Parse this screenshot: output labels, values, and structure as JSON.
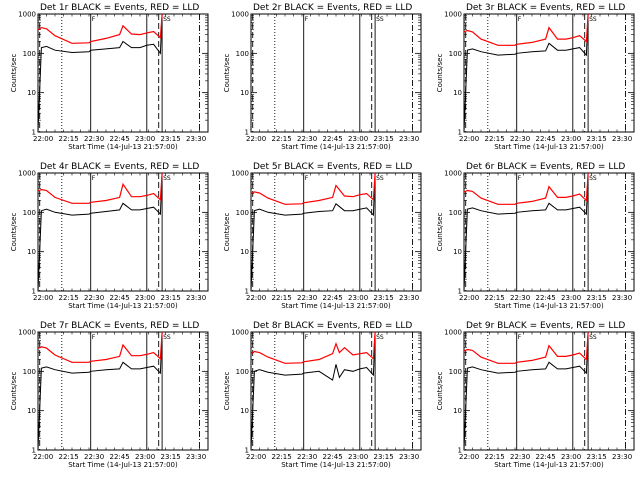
{
  "chart_data": {
    "type": "line",
    "layout": "3x3 grid of panels",
    "shared": {
      "xlabel": "Start Time (14-Jul-13 21:57:00)",
      "ylabel": "Counts/sec",
      "x_tick_labels": [
        "22:00",
        "22:15",
        "22:30",
        "22:45",
        "23:00",
        "23:15",
        "23:30"
      ],
      "x_tick_minutes": [
        3,
        18,
        33,
        48,
        63,
        78,
        93
      ],
      "xlim_minutes": [
        0,
        100
      ],
      "y_scale": "log",
      "ylim": [
        1,
        1000
      ],
      "y_tick_labels": [
        "1",
        "10",
        "100",
        "1000"
      ],
      "y_tick_values": [
        1,
        10,
        100,
        1000
      ],
      "grid": false,
      "series_colors": {
        "events": "#000000",
        "lld": "#ff0000"
      },
      "vertical_markers": [
        {
          "x": 1,
          "style": "dashed"
        },
        {
          "x": 14,
          "style": "dotted"
        },
        {
          "x": 31,
          "style": "solid",
          "label": "F"
        },
        {
          "x": 64,
          "style": "solid"
        },
        {
          "x": 71,
          "style": "dashed"
        },
        {
          "x": 73,
          "style": "solid",
          "label": "SS"
        },
        {
          "x": 95,
          "style": "dash-dot"
        }
      ]
    },
    "panels": [
      {
        "title": "Det 1r BLACK = Events, RED = LLD",
        "has_data": true,
        "x": [
          0,
          2,
          5,
          10,
          20,
          30,
          31,
          40,
          48,
          50,
          55,
          60,
          64,
          68,
          72,
          73
        ],
        "events": [
          1,
          140,
          150,
          120,
          105,
          110,
          120,
          130,
          140,
          200,
          140,
          140,
          160,
          170,
          100,
          1000
        ],
        "lld": [
          400,
          450,
          420,
          280,
          180,
          185,
          200,
          240,
          300,
          500,
          310,
          300,
          330,
          360,
          250,
          1000
        ]
      },
      {
        "title": "Det 2r BLACK = Events, RED = LLD",
        "has_data": false,
        "x": [],
        "events": [],
        "lld": []
      },
      {
        "title": "Det 3r BLACK = Events, RED = LLD",
        "has_data": true,
        "x": [
          0,
          2,
          5,
          10,
          20,
          30,
          31,
          40,
          48,
          50,
          55,
          60,
          64,
          68,
          72,
          73
        ],
        "events": [
          1,
          120,
          130,
          110,
          90,
          95,
          100,
          110,
          115,
          180,
          120,
          120,
          130,
          140,
          90,
          1000
        ],
        "lld": [
          350,
          380,
          350,
          230,
          160,
          160,
          170,
          190,
          230,
          450,
          230,
          230,
          250,
          280,
          200,
          1000
        ]
      },
      {
        "title": "Det 4r BLACK = Events, RED = LLD",
        "has_data": true,
        "x": [
          0,
          2,
          5,
          10,
          20,
          30,
          31,
          40,
          48,
          50,
          55,
          60,
          64,
          68,
          72,
          73
        ],
        "events": [
          1,
          110,
          120,
          100,
          85,
          90,
          95,
          105,
          115,
          170,
          115,
          115,
          125,
          135,
          90,
          1000
        ],
        "lld": [
          350,
          380,
          360,
          240,
          170,
          170,
          180,
          200,
          240,
          520,
          250,
          250,
          270,
          300,
          210,
          1000
        ]
      },
      {
        "title": "Det 5r BLACK = Events, RED = LLD",
        "has_data": true,
        "x": [
          0,
          2,
          5,
          10,
          20,
          30,
          31,
          40,
          48,
          50,
          55,
          60,
          64,
          68,
          72,
          73
        ],
        "events": [
          1,
          110,
          120,
          100,
          85,
          90,
          95,
          105,
          110,
          165,
          110,
          110,
          120,
          130,
          85,
          1000
        ],
        "lld": [
          300,
          330,
          310,
          230,
          160,
          165,
          175,
          200,
          240,
          480,
          260,
          250,
          280,
          300,
          210,
          1000
        ]
      },
      {
        "title": "Det 6r BLACK = Events, RED = LLD",
        "has_data": true,
        "x": [
          0,
          2,
          5,
          10,
          20,
          30,
          31,
          40,
          48,
          50,
          55,
          60,
          64,
          68,
          72,
          73
        ],
        "events": [
          1,
          120,
          130,
          110,
          90,
          95,
          100,
          110,
          115,
          170,
          115,
          115,
          125,
          135,
          90,
          1000
        ],
        "lld": [
          330,
          360,
          340,
          230,
          160,
          160,
          170,
          190,
          230,
          450,
          240,
          240,
          260,
          290,
          200,
          1000
        ]
      },
      {
        "title": "Det 7r BLACK = Events, RED = LLD",
        "has_data": true,
        "x": [
          0,
          2,
          5,
          10,
          20,
          30,
          31,
          40,
          48,
          50,
          55,
          60,
          64,
          68,
          72,
          73
        ],
        "events": [
          1,
          120,
          130,
          110,
          90,
          95,
          100,
          110,
          115,
          170,
          115,
          115,
          125,
          135,
          90,
          1000
        ],
        "lld": [
          380,
          420,
          390,
          260,
          170,
          170,
          180,
          200,
          240,
          470,
          250,
          250,
          270,
          300,
          210,
          1000
        ]
      },
      {
        "title": "Det 8r BLACK = Events, RED = LLD",
        "has_data": true,
        "x": [
          0,
          2,
          5,
          10,
          20,
          30,
          31,
          40,
          48,
          50,
          52,
          55,
          60,
          64,
          68,
          72,
          73
        ],
        "events": [
          1,
          100,
          110,
          95,
          80,
          85,
          90,
          100,
          60,
          150,
          70,
          110,
          100,
          115,
          125,
          80,
          1000
        ],
        "lld": [
          280,
          320,
          300,
          230,
          160,
          165,
          175,
          200,
          280,
          500,
          300,
          400,
          260,
          280,
          300,
          210,
          1000
        ]
      },
      {
        "title": "Det 9r BLACK = Events, RED = LLD",
        "has_data": true,
        "x": [
          0,
          2,
          5,
          10,
          20,
          30,
          31,
          40,
          48,
          50,
          55,
          60,
          64,
          68,
          72,
          73
        ],
        "events": [
          1,
          120,
          130,
          110,
          90,
          95,
          100,
          110,
          115,
          170,
          115,
          115,
          125,
          135,
          90,
          1000
        ],
        "lld": [
          330,
          360,
          340,
          230,
          160,
          160,
          170,
          190,
          230,
          450,
          240,
          240,
          260,
          290,
          200,
          1000
        ]
      }
    ]
  }
}
